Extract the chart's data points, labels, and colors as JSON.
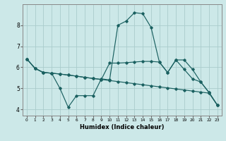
{
  "title": "",
  "xlabel": "Humidex (Indice chaleur)",
  "bg_color": "#cce8e8",
  "grid_color": "#aacccc",
  "line_color": "#1a6060",
  "xlim": [
    -0.5,
    23.5
  ],
  "ylim": [
    3.7,
    9.0
  ],
  "yticks": [
    4,
    5,
    6,
    7,
    8
  ],
  "xticks": [
    0,
    1,
    2,
    3,
    4,
    5,
    6,
    7,
    8,
    9,
    10,
    11,
    12,
    13,
    14,
    15,
    16,
    17,
    18,
    19,
    20,
    21,
    22,
    23
  ],
  "series": [
    {
      "x": [
        0,
        1,
        2,
        3,
        4,
        5,
        6,
        7,
        8,
        9,
        10,
        11,
        12,
        13,
        14,
        15,
        16,
        17,
        18,
        19,
        20,
        21,
        22,
        23
      ],
      "y": [
        6.4,
        5.95,
        5.75,
        5.72,
        5.68,
        5.63,
        5.58,
        5.52,
        5.47,
        5.42,
        5.37,
        5.32,
        5.27,
        5.22,
        5.17,
        5.12,
        5.07,
        5.02,
        4.97,
        4.92,
        4.87,
        4.82,
        4.77,
        4.2
      ]
    },
    {
      "x": [
        0,
        1,
        2,
        3,
        4,
        5,
        6,
        7,
        8,
        9,
        10,
        11,
        12,
        13,
        14,
        15,
        16,
        17,
        18,
        19,
        20,
        21,
        22,
        23
      ],
      "y": [
        6.4,
        5.95,
        5.75,
        5.72,
        5.0,
        4.1,
        4.65,
        4.65,
        4.65,
        5.45,
        5.4,
        8.0,
        8.2,
        8.6,
        8.55,
        7.9,
        6.25,
        5.75,
        6.35,
        5.9,
        5.45,
        5.3,
        4.8,
        4.2
      ]
    },
    {
      "x": [
        0,
        1,
        2,
        3,
        4,
        5,
        6,
        7,
        8,
        9,
        10,
        11,
        12,
        13,
        14,
        15,
        16,
        17,
        18,
        19,
        20,
        21,
        22,
        23
      ],
      "y": [
        6.4,
        5.95,
        5.75,
        5.72,
        5.68,
        5.63,
        5.58,
        5.52,
        5.47,
        5.42,
        6.2,
        6.2,
        6.22,
        6.25,
        6.28,
        6.28,
        6.25,
        5.75,
        6.35,
        6.35,
        5.9,
        5.3,
        4.8,
        4.2
      ]
    }
  ]
}
